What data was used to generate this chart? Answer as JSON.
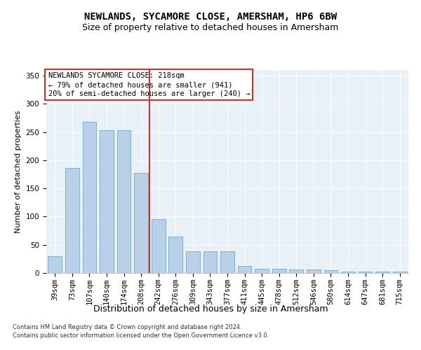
{
  "title": "NEWLANDS, SYCAMORE CLOSE, AMERSHAM, HP6 6BW",
  "subtitle": "Size of property relative to detached houses in Amersham",
  "xlabel": "Distribution of detached houses by size in Amersham",
  "ylabel": "Number of detached properties",
  "bar_labels": [
    "39sqm",
    "73sqm",
    "107sqm",
    "140sqm",
    "174sqm",
    "208sqm",
    "242sqm",
    "276sqm",
    "309sqm",
    "343sqm",
    "377sqm",
    "411sqm",
    "445sqm",
    "478sqm",
    "512sqm",
    "546sqm",
    "580sqm",
    "614sqm",
    "647sqm",
    "681sqm",
    "715sqm"
  ],
  "bar_heights": [
    30,
    186,
    268,
    253,
    253,
    178,
    95,
    65,
    38,
    38,
    38,
    12,
    8,
    8,
    6,
    6,
    5,
    3,
    3,
    3,
    3
  ],
  "bar_color": "#b8d0e8",
  "bar_edgecolor": "#6aaad4",
  "vline_color": "#c0392b",
  "annotation_text": "NEWLANDS SYCAMORE CLOSE: 218sqm\n← 79% of detached houses are smaller (941)\n20% of semi-detached houses are larger (240) →",
  "annotation_box_color": "#ffffff",
  "annotation_box_edgecolor": "#c0392b",
  "ylim": [
    0,
    360
  ],
  "yticks": [
    0,
    50,
    100,
    150,
    200,
    250,
    300,
    350
  ],
  "footnote1": "Contains HM Land Registry data © Crown copyright and database right 2024.",
  "footnote2": "Contains public sector information licensed under the Open Government Licence v3.0.",
  "plot_bg_color": "#e8f0f8",
  "grid_color": "#ffffff",
  "title_fontsize": 10,
  "subtitle_fontsize": 9,
  "xlabel_fontsize": 9,
  "ylabel_fontsize": 8,
  "tick_fontsize": 7.5,
  "annotation_fontsize": 7.5,
  "footnote_fontsize": 6
}
